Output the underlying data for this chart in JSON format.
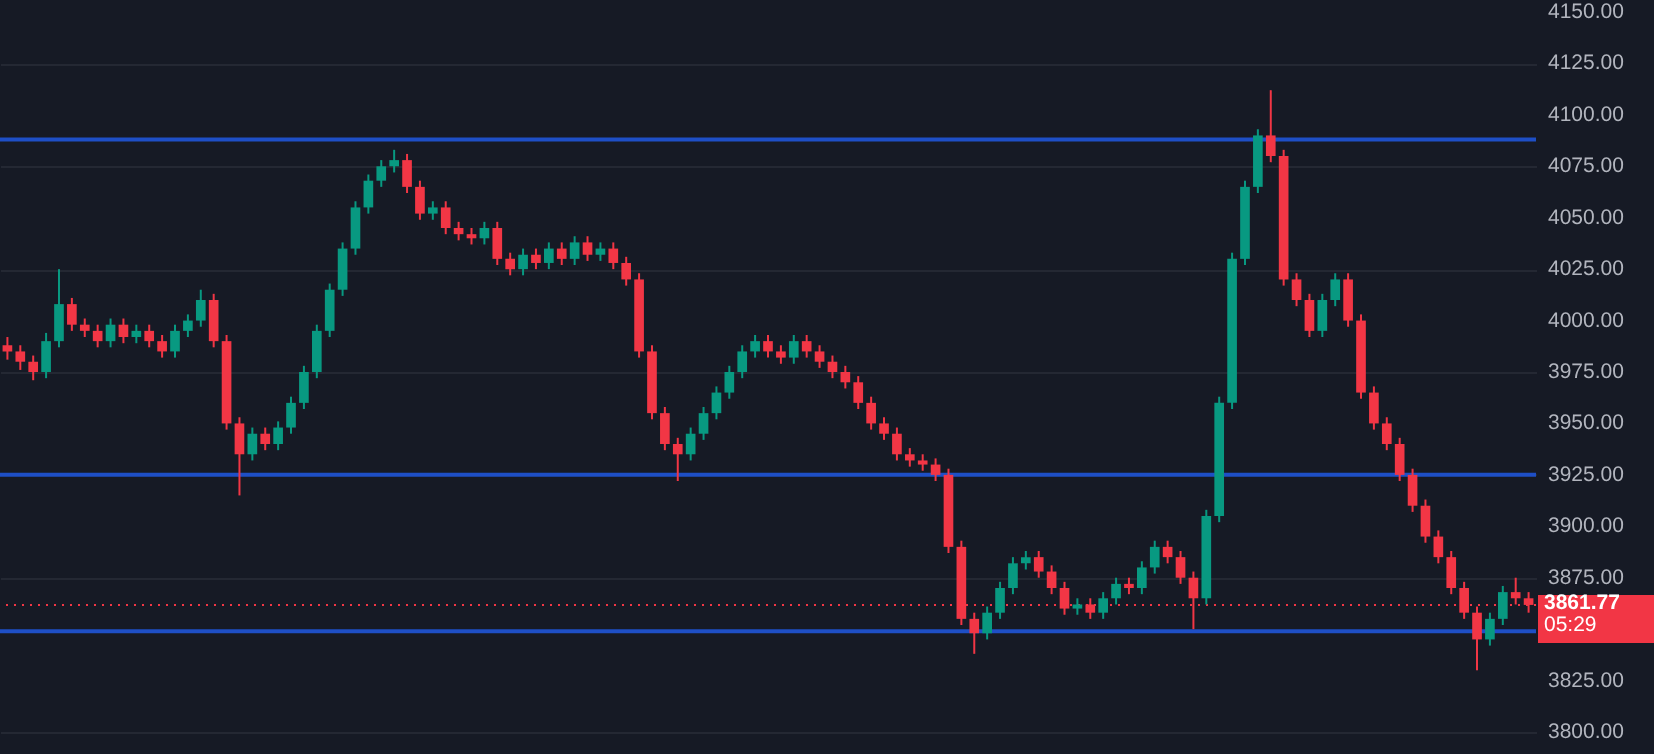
{
  "chart_data": {
    "type": "candlestick",
    "categories": [
      null,
      null,
      null,
      null,
      null,
      null,
      null,
      null,
      null,
      null,
      null,
      null,
      null,
      null,
      null,
      null,
      null,
      null,
      null,
      null,
      null,
      null,
      null,
      null,
      null,
      null,
      null,
      null,
      null,
      null,
      null,
      null,
      null,
      null,
      null,
      null,
      null,
      null,
      null,
      null,
      null,
      null,
      null,
      null,
      null,
      null,
      null,
      null,
      null,
      null,
      null,
      null,
      null,
      null,
      null,
      null,
      null,
      null,
      null,
      null,
      null,
      null,
      null,
      null,
      null,
      null,
      null,
      null,
      null,
      null,
      null,
      null,
      null,
      null,
      null,
      null,
      null,
      null,
      null,
      null,
      null,
      null,
      null,
      null,
      null,
      null,
      null,
      null,
      null,
      null,
      null,
      null,
      null,
      null,
      null,
      null,
      null,
      null,
      null,
      null,
      null,
      null,
      null,
      null,
      null,
      null,
      null,
      null,
      null,
      null,
      null,
      null,
      null,
      null,
      null,
      null,
      null,
      null,
      null
    ],
    "ohlc": [
      [
        3988,
        3992,
        3981,
        3985
      ],
      [
        3985,
        3988,
        3976,
        3980
      ],
      [
        3980,
        3983,
        3971,
        3975
      ],
      [
        3975,
        3994,
        3972,
        3990
      ],
      [
        3990,
        4025,
        3987,
        4008
      ],
      [
        4008,
        4011,
        3995,
        3998
      ],
      [
        3998,
        4001,
        3992,
        3995
      ],
      [
        3995,
        3998,
        3987,
        3990
      ],
      [
        3990,
        4001,
        3987,
        3998
      ],
      [
        3998,
        4001,
        3989,
        3992
      ],
      [
        3992,
        3998,
        3989,
        3995
      ],
      [
        3995,
        3998,
        3987,
        3990
      ],
      [
        3990,
        3993,
        3982,
        3985
      ],
      [
        3985,
        3998,
        3982,
        3995
      ],
      [
        3995,
        4003,
        3992,
        4000
      ],
      [
        4000,
        4015,
        3997,
        4010
      ],
      [
        4010,
        4013,
        3987,
        3990
      ],
      [
        3990,
        3993,
        3947,
        3950
      ],
      [
        3950,
        3953,
        3915,
        3935
      ],
      [
        3935,
        3948,
        3932,
        3945
      ],
      [
        3945,
        3948,
        3937,
        3940
      ],
      [
        3940,
        3951,
        3937,
        3948
      ],
      [
        3948,
        3963,
        3945,
        3960
      ],
      [
        3960,
        3978,
        3957,
        3975
      ],
      [
        3975,
        3998,
        3972,
        3995
      ],
      [
        3995,
        4018,
        3992,
        4015
      ],
      [
        4015,
        4038,
        4012,
        4035
      ],
      [
        4035,
        4058,
        4032,
        4055
      ],
      [
        4055,
        4071,
        4052,
        4068
      ],
      [
        4068,
        4078,
        4065,
        4075
      ],
      [
        4075,
        4083,
        4072,
        4078
      ],
      [
        4078,
        4081,
        4062,
        4065
      ],
      [
        4065,
        4068,
        4049,
        4052
      ],
      [
        4052,
        4058,
        4049,
        4055
      ],
      [
        4055,
        4058,
        4042,
        4045
      ],
      [
        4045,
        4048,
        4039,
        4042
      ],
      [
        4042,
        4045,
        4037,
        4040
      ],
      [
        4040,
        4048,
        4037,
        4045
      ],
      [
        4045,
        4048,
        4027,
        4030
      ],
      [
        4030,
        4033,
        4022,
        4025
      ],
      [
        4025,
        4035,
        4022,
        4032
      ],
      [
        4032,
        4035,
        4025,
        4028
      ],
      [
        4028,
        4038,
        4025,
        4035
      ],
      [
        4035,
        4038,
        4027,
        4030
      ],
      [
        4030,
        4041,
        4027,
        4038
      ],
      [
        4038,
        4041,
        4029,
        4032
      ],
      [
        4032,
        4038,
        4029,
        4035
      ],
      [
        4035,
        4038,
        4025,
        4028
      ],
      [
        4028,
        4031,
        4017,
        4020
      ],
      [
        4020,
        4023,
        3982,
        3985
      ],
      [
        3985,
        3988,
        3952,
        3955
      ],
      [
        3955,
        3958,
        3937,
        3940
      ],
      [
        3940,
        3943,
        3922,
        3935
      ],
      [
        3935,
        3948,
        3932,
        3945
      ],
      [
        3945,
        3958,
        3942,
        3955
      ],
      [
        3955,
        3968,
        3952,
        3965
      ],
      [
        3965,
        3978,
        3962,
        3975
      ],
      [
        3975,
        3988,
        3972,
        3985
      ],
      [
        3985,
        3993,
        3982,
        3990
      ],
      [
        3990,
        3993,
        3982,
        3985
      ],
      [
        3985,
        3988,
        3979,
        3982
      ],
      [
        3982,
        3993,
        3979,
        3990
      ],
      [
        3990,
        3993,
        3982,
        3985
      ],
      [
        3985,
        3988,
        3977,
        3980
      ],
      [
        3980,
        3983,
        3972,
        3975
      ],
      [
        3975,
        3978,
        3967,
        3970
      ],
      [
        3970,
        3973,
        3957,
        3960
      ],
      [
        3960,
        3963,
        3947,
        3950
      ],
      [
        3950,
        3953,
        3942,
        3945
      ],
      [
        3945,
        3948,
        3932,
        3935
      ],
      [
        3935,
        3938,
        3929,
        3932
      ],
      [
        3932,
        3935,
        3927,
        3930
      ],
      [
        3930,
        3933,
        3922,
        3925
      ],
      [
        3925,
        3928,
        3887,
        3890
      ],
      [
        3890,
        3893,
        3852,
        3855
      ],
      [
        3855,
        3858,
        3838,
        3848
      ],
      [
        3848,
        3861,
        3845,
        3858
      ],
      [
        3858,
        3873,
        3855,
        3870
      ],
      [
        3870,
        3885,
        3867,
        3882
      ],
      [
        3882,
        3888,
        3879,
        3885
      ],
      [
        3885,
        3888,
        3875,
        3878
      ],
      [
        3878,
        3881,
        3867,
        3870
      ],
      [
        3870,
        3873,
        3857,
        3860
      ],
      [
        3860,
        3865,
        3857,
        3862
      ],
      [
        3862,
        3865,
        3855,
        3858
      ],
      [
        3858,
        3868,
        3855,
        3865
      ],
      [
        3865,
        3875,
        3862,
        3872
      ],
      [
        3872,
        3875,
        3867,
        3870
      ],
      [
        3870,
        3883,
        3867,
        3880
      ],
      [
        3880,
        3893,
        3877,
        3890
      ],
      [
        3890,
        3893,
        3882,
        3885
      ],
      [
        3885,
        3888,
        3872,
        3875
      ],
      [
        3875,
        3878,
        3850,
        3865
      ],
      [
        3865,
        3908,
        3862,
        3905
      ],
      [
        3905,
        3963,
        3902,
        3960
      ],
      [
        3960,
        4033,
        3957,
        4030
      ],
      [
        4030,
        4068,
        4027,
        4065
      ],
      [
        4065,
        4093,
        4062,
        4090
      ],
      [
        4090,
        4112,
        4077,
        4080
      ],
      [
        4080,
        4083,
        4017,
        4020
      ],
      [
        4020,
        4023,
        4007,
        4010
      ],
      [
        4010,
        4013,
        3992,
        3995
      ],
      [
        3995,
        4013,
        3992,
        4010
      ],
      [
        4010,
        4023,
        4007,
        4020
      ],
      [
        4020,
        4023,
        3997,
        4000
      ],
      [
        4000,
        4003,
        3962,
        3965
      ],
      [
        3965,
        3968,
        3947,
        3950
      ],
      [
        3950,
        3953,
        3937,
        3940
      ],
      [
        3940,
        3943,
        3922,
        3925
      ],
      [
        3925,
        3928,
        3907,
        3910
      ],
      [
        3910,
        3913,
        3892,
        3895
      ],
      [
        3895,
        3898,
        3882,
        3885
      ],
      [
        3885,
        3888,
        3867,
        3870
      ],
      [
        3870,
        3873,
        3855,
        3858
      ],
      [
        3858,
        3861,
        3830,
        3845
      ],
      [
        3845,
        3858,
        3842,
        3855
      ],
      [
        3855,
        3871,
        3852,
        3868
      ],
      [
        3868,
        3875,
        3862,
        3865
      ],
      [
        3865,
        3868,
        3858,
        3861.77
      ]
    ],
    "ylim": [
      3800,
      4150
    ],
    "yticks": [
      {
        "value": 3800,
        "label": "3800.00"
      },
      {
        "value": 3825,
        "label": "3825.00"
      },
      {
        "value": 3875,
        "label": "3875.00"
      },
      {
        "value": 3900,
        "label": "3900.00"
      },
      {
        "value": 3925,
        "label": "3925.00"
      },
      {
        "value": 3950,
        "label": "3950.00"
      },
      {
        "value": 3975,
        "label": "3975.00"
      },
      {
        "value": 4000,
        "label": "4000.00"
      },
      {
        "value": 4025,
        "label": "4025.00"
      },
      {
        "value": 4050,
        "label": "4050.00"
      },
      {
        "value": 4075,
        "label": "4075.00"
      },
      {
        "value": 4100,
        "label": "4100.00"
      },
      {
        "value": 4125,
        "label": "4125.00"
      },
      {
        "value": 4150,
        "label": "4150.00"
      }
    ],
    "ref_lines": [
      {
        "axis": "y",
        "value": 4088,
        "color": "#1e4fc6"
      },
      {
        "axis": "y",
        "value": 3925,
        "color": "#1e4fc6"
      },
      {
        "axis": "y",
        "value": 3849,
        "color": "#1e4fc6"
      },
      {
        "axis": "y",
        "value": 3861.77,
        "label": "3861.77",
        "color": "#f23645",
        "line_style": "dotted"
      }
    ],
    "annotations": [
      "05:29"
    ],
    "grid": "y",
    "tick_labels": "y"
  }
}
